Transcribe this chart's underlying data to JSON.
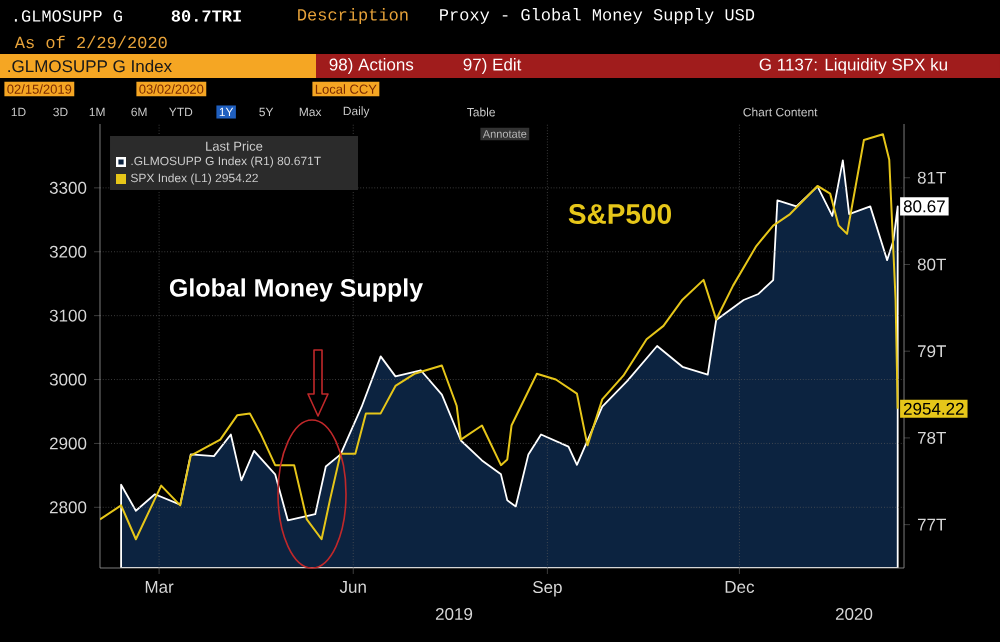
{
  "chart_data": {
    "type": "line",
    "xlim": [
      "2019-02-15",
      "2020-03-02"
    ],
    "xticks": [
      {
        "value": "2019-03-15",
        "label": "Mar"
      },
      {
        "value": "2019-06-15",
        "label": "Jun"
      },
      {
        "value": "2019-09-15",
        "label": "Sep"
      },
      {
        "value": "2019-12-15",
        "label": "Dec"
      }
    ],
    "ylim": [
      2705,
      3400
    ],
    "yticks": [
      2800,
      2900,
      3000,
      3100,
      3200,
      3300
    ],
    "y2lim": [
      76.5,
      81.62
    ],
    "y2ticks": [
      {
        "value": 77,
        "label": "77T"
      },
      {
        "value": 78,
        "label": "78T"
      },
      {
        "value": 79,
        "label": "79T"
      },
      {
        "value": 80,
        "label": "80T"
      },
      {
        "value": 81,
        "label": "81T"
      }
    ],
    "grid": true,
    "legend": "top left",
    "legend_title": "Last Price",
    "series": [
      {
        "name": ".GLMOSUPP G Index (R1) 80.671T",
        "type": "area",
        "axis": "y2",
        "color": "#0c2340",
        "x": [
          "2019-02-25",
          "2019-03-04",
          "2019-03-13",
          "2019-03-25",
          "2019-03-30",
          "2019-04-10",
          "2019-04-18",
          "2019-04-23",
          "2019-04-29",
          "2019-05-09",
          "2019-05-15",
          "2019-05-28",
          "2019-06-02",
          "2019-06-09",
          "2019-06-19",
          "2019-06-28",
          "2019-07-05",
          "2019-07-17",
          "2019-07-27",
          "2019-08-05",
          "2019-08-15",
          "2019-08-24",
          "2019-08-27",
          "2019-08-31",
          "2019-09-06",
          "2019-09-12",
          "2019-09-25",
          "2019-09-29",
          "2019-10-11",
          "2019-10-23",
          "2019-11-06",
          "2019-11-18",
          "2019-11-30",
          "2019-12-04",
          "2019-12-17",
          "2019-12-24",
          "2019-12-31",
          "2020-01-02",
          "2020-01-11",
          "2020-01-21",
          "2020-01-28",
          "2020-02-02",
          "2020-02-05",
          "2020-02-15",
          "2020-02-23",
          "2020-02-26",
          "2020-02-28"
        ],
        "values": [
          77.46,
          77.16,
          77.35,
          77.23,
          77.81,
          77.79,
          78.04,
          77.51,
          77.85,
          77.58,
          77.05,
          77.12,
          77.67,
          77.81,
          78.36,
          78.94,
          78.71,
          78.78,
          78.5,
          77.97,
          77.74,
          77.58,
          77.28,
          77.21,
          77.81,
          78.04,
          77.9,
          77.69,
          78.36,
          78.66,
          79.06,
          78.82,
          78.73,
          79.36,
          79.59,
          79.66,
          79.82,
          80.74,
          80.67,
          80.9,
          80.56,
          81.2,
          80.58,
          80.67,
          80.05,
          80.28,
          80.67
        ],
        "value_labels": [
          null,
          null,
          null,
          null,
          null,
          null,
          null,
          null,
          null,
          null,
          null,
          null,
          null,
          null,
          null,
          null,
          null,
          null,
          null,
          null,
          null,
          null,
          null,
          null,
          null,
          null,
          null,
          null,
          null,
          null,
          null,
          null,
          null,
          null,
          null,
          null,
          null,
          null,
          null,
          null,
          null,
          null,
          null,
          null,
          null,
          null,
          "80.67"
        ]
      },
      {
        "name": "SPX Index (L1) 2954.22",
        "color": "#e6c619",
        "x": [
          "2019-02-15",
          "2019-02-25",
          "2019-03-04",
          "2019-03-16",
          "2019-03-25",
          "2019-03-30",
          "2019-04-13",
          "2019-04-21",
          "2019-04-27",
          "2019-05-02",
          "2019-05-09",
          "2019-05-18",
          "2019-05-24",
          "2019-05-31",
          "2019-06-04",
          "2019-06-09",
          "2019-06-16",
          "2019-06-21",
          "2019-06-28",
          "2019-07-05",
          "2019-07-14",
          "2019-07-27",
          "2019-08-03",
          "2019-08-05",
          "2019-08-15",
          "2019-08-24",
          "2019-08-27",
          "2019-08-29",
          "2019-09-10",
          "2019-09-19",
          "2019-09-29",
          "2019-10-04",
          "2019-10-11",
          "2019-10-21",
          "2019-11-01",
          "2019-11-09",
          "2019-11-18",
          "2019-11-28",
          "2019-12-04",
          "2019-12-12",
          "2019-12-23",
          "2019-12-31",
          "2020-01-08",
          "2020-01-21",
          "2020-01-27",
          "2020-01-31",
          "2020-02-04",
          "2020-02-12",
          "2020-02-21",
          "2020-02-24",
          "2020-02-27",
          "2020-02-28"
        ],
        "values": [
          2781,
          2803,
          2750,
          2834,
          2803,
          2881,
          2906,
          2944,
          2947,
          2916,
          2866,
          2866,
          2781,
          2750,
          2812,
          2884,
          2884,
          2947,
          2947,
          2990,
          3009,
          3022,
          2959,
          2906,
          2928,
          2866,
          2875,
          2928,
          3009,
          3000,
          2978,
          2897,
          2969,
          3006,
          3063,
          3084,
          3125,
          3156,
          3094,
          3147,
          3209,
          3241,
          3259,
          3303,
          3291,
          3241,
          3228,
          3375,
          3384,
          3344,
          3125,
          2954.22
        ],
        "value_labels": [
          null,
          null,
          null,
          null,
          null,
          null,
          null,
          null,
          null,
          null,
          null,
          null,
          null,
          null,
          null,
          null,
          null,
          null,
          null,
          null,
          null,
          null,
          null,
          null,
          null,
          null,
          null,
          null,
          null,
          null,
          null,
          null,
          null,
          null,
          null,
          null,
          null,
          null,
          null,
          null,
          null,
          null,
          null,
          null,
          null,
          null,
          null,
          null,
          null,
          null,
          null,
          "2954.22"
        ]
      }
    ],
    "annotations": [
      ".GLMOSUPP G",
      "80.7TRI",
      "Description",
      "Proxy - Global Money Supply USD",
      "As of 2/29/2020",
      ".GLMOSUPP G Index",
      "98) Actions",
      "97) Edit",
      "G 1137: Liquidity SPX ku",
      "02/15/2019",
      "03/02/2020",
      "Local CCY",
      "1D",
      "3D",
      "1M",
      "6M",
      "YTD",
      "1Y",
      "5Y",
      "Max",
      "Daily",
      "Table",
      "Chart Content",
      "Annotate",
      "Global Money Supply",
      "S&P500",
      "2019",
      "2020"
    ]
  }
}
